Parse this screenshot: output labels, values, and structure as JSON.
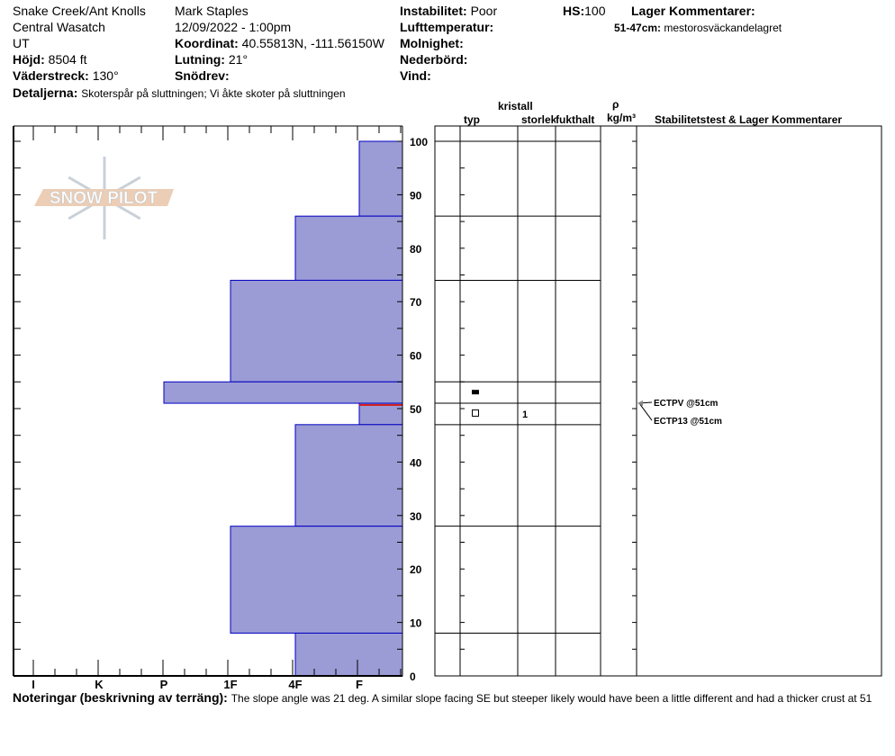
{
  "header": {
    "location": "Snake Creek/Ant Knolls",
    "range": "Central Wasatch",
    "state": "UT",
    "elevation_label": "Höjd:",
    "elevation": "8504 ft",
    "aspect_label": "Väderstreck:",
    "aspect": "130°",
    "observer": "Mark Staples",
    "datetime": "12/09/2022 - 1:00pm",
    "coord_label": "Koordinat:",
    "coord": "40.55813N, -111.56150W",
    "slope_label": "Lutning:",
    "slope": "21°",
    "wind_loading_label": "Snödrev:",
    "instability_label": "Instabilitet:",
    "instability": "Poor",
    "air_temp_label": "Lufttemperatur:",
    "sky_label": "Molnighet:",
    "precip_label": "Nederbörd:",
    "wind_label": "Vind:",
    "hs_label": "HS:",
    "hs": "100",
    "layer_comments_label": "Lager Kommentarer:",
    "layer_comment_range": "51-47cm:",
    "layer_comment": "mestorosväckandelagret",
    "details_label": "Detaljerna:",
    "details": "Skoterspår på sluttningen; Vi åkte skoter på sluttningen"
  },
  "table_headers": {
    "crystal": "kristall",
    "type": "typ",
    "size": "storlek",
    "moisture": "fukthalt",
    "rho": "ρ",
    "density_unit": "kg/m³",
    "stability": "Stabilitetstest & Lager Kommentarer"
  },
  "notes_label": "Noteringar (beskrivning av terräng):",
  "notes": "The slope angle was 21 deg. A similar slope facing SE but steeper likely would have been a little different and had a thicker crust at 51",
  "logo_text": "SNOW PILOT",
  "colors": {
    "layer_fill": "#9b9bd6",
    "layer_stroke": "#0000c0",
    "failure_line": "#d02020"
  },
  "chart_data": {
    "type": "bar",
    "orientation": "horizontal",
    "ylabel": "",
    "ylim": [
      0,
      100
    ],
    "yticks": [
      "0",
      "10",
      "20",
      "30",
      "40",
      "50",
      "60",
      "70",
      "80",
      "90",
      "100"
    ],
    "xticks": [
      "I",
      "K",
      "P",
      "1F",
      "4F",
      "F"
    ],
    "layers": [
      {
        "top": 100,
        "bottom": 86,
        "hardness": "F"
      },
      {
        "top": 86,
        "bottom": 74,
        "hardness": "4F"
      },
      {
        "top": 74,
        "bottom": 55,
        "hardness": "1F"
      },
      {
        "top": 55,
        "bottom": 51,
        "hardness": "P",
        "grain_type": "melt-freeze crust"
      },
      {
        "top": 51,
        "bottom": 47,
        "hardness": "F",
        "grain_type": "faceted",
        "grain_size": "1"
      },
      {
        "top": 47,
        "bottom": 28,
        "hardness": "4F"
      },
      {
        "top": 28,
        "bottom": 8,
        "hardness": "1F"
      },
      {
        "top": 8,
        "bottom": 0,
        "hardness": "4F"
      }
    ],
    "failure_depth": 51,
    "tests": [
      "ECTPV @51cm",
      "ECTP13 @51cm"
    ]
  }
}
